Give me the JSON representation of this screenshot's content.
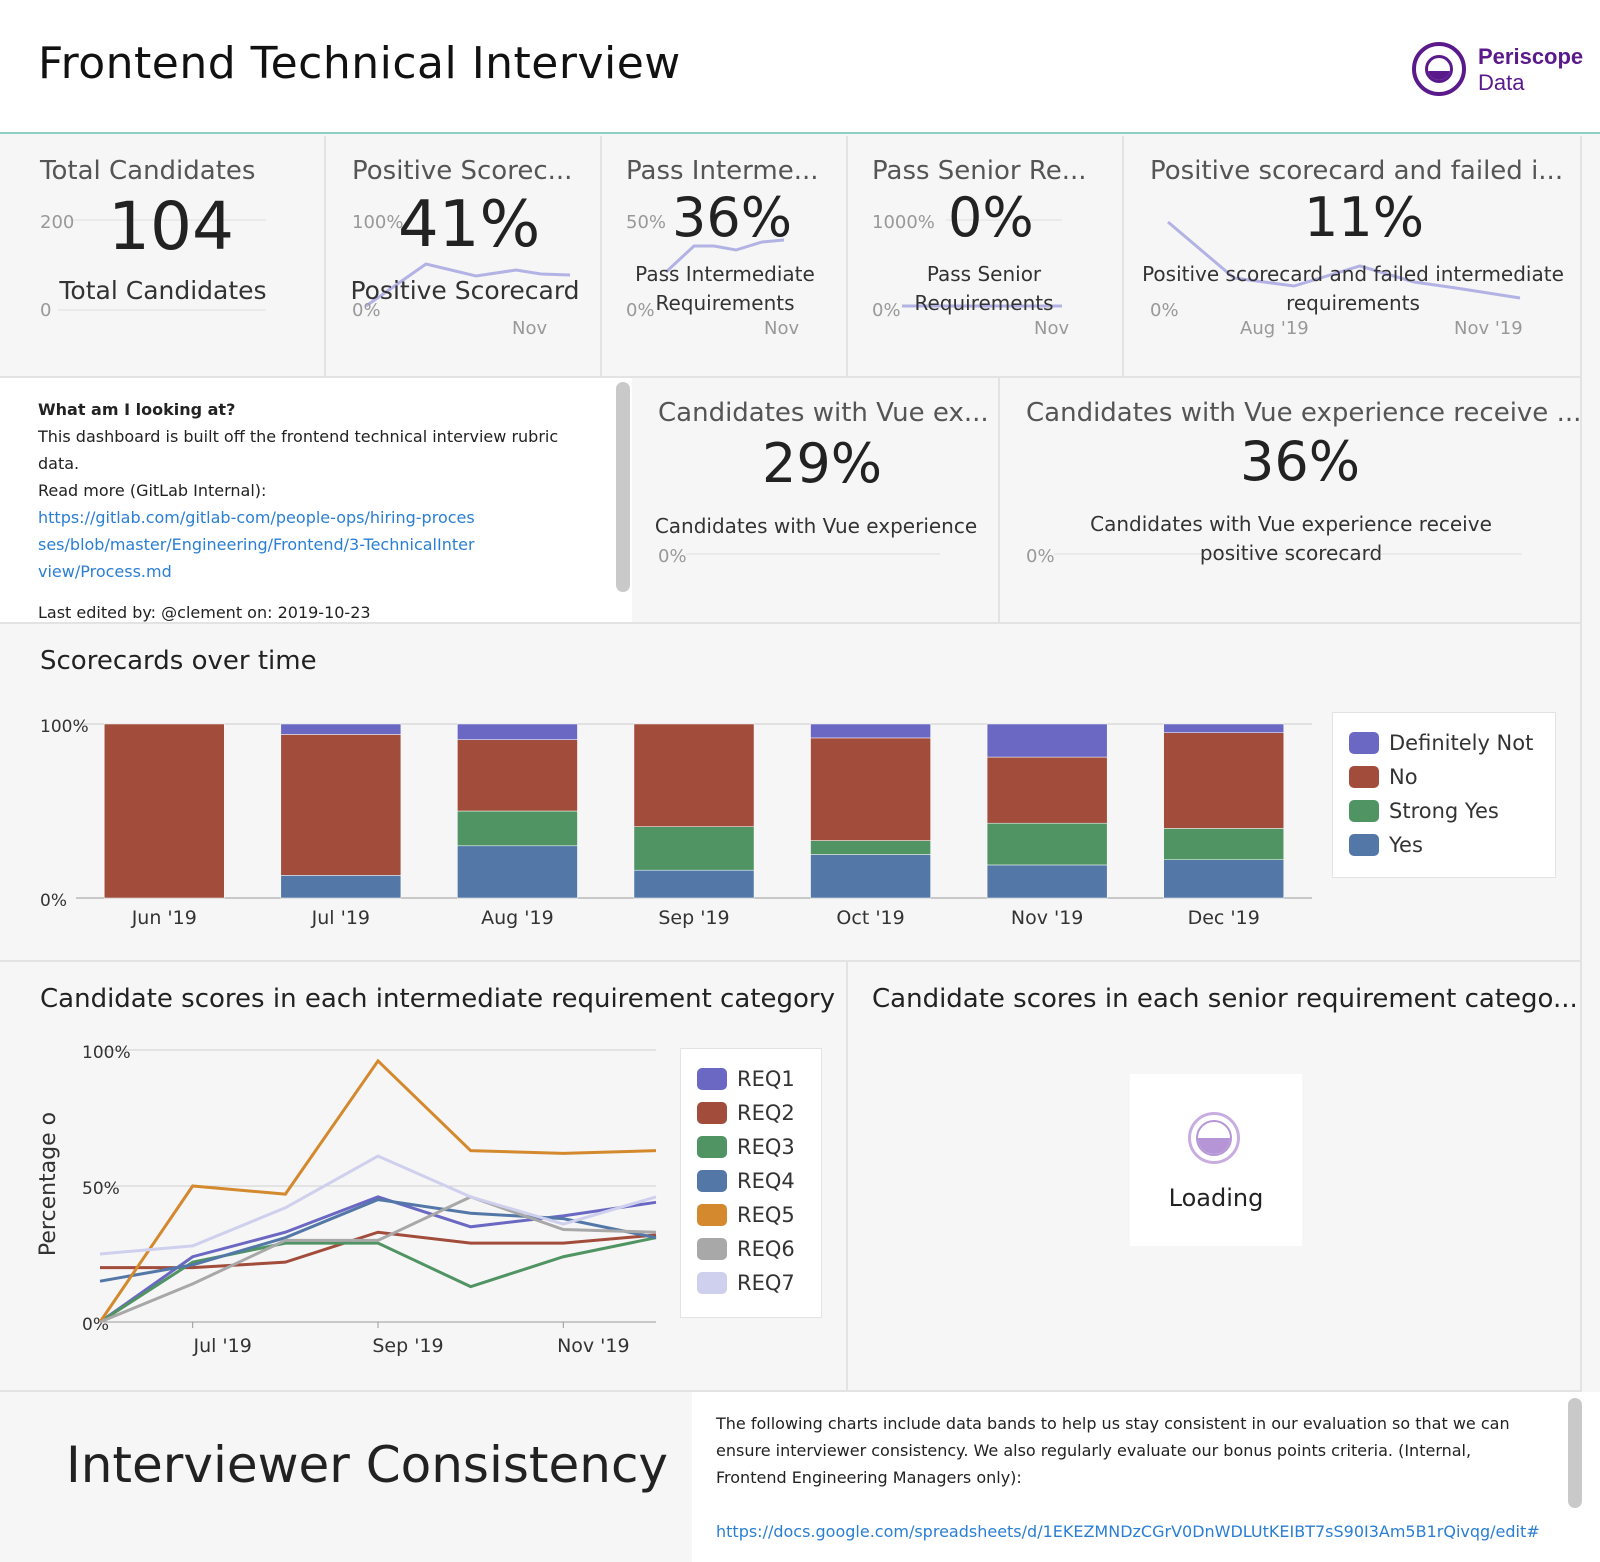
{
  "header": {
    "title": "Frontend Technical Interview",
    "logo_line1": "Periscope",
    "logo_line2": "Data"
  },
  "kpis": [
    {
      "title": "Total Candidates",
      "value": "104",
      "label": "Total Candidates",
      "ytop": "200",
      "ybottom": "0"
    },
    {
      "title": "Positive Scorec...",
      "value": "41%",
      "label": "Positive Scorecard",
      "ytop": "100%",
      "ybottom": "0%",
      "xtick": "Nov"
    },
    {
      "title": "Pass Interme...",
      "value": "36%",
      "label": "Pass Intermediate Requirements",
      "ytop": "50%",
      "ybottom": "0%",
      "xtick": "Nov"
    },
    {
      "title": "Pass Senior Re...",
      "value": "0%",
      "label": "Pass Senior Requirements",
      "ytop": "1000%",
      "ybottom": "0%",
      "xtick": "Nov"
    },
    {
      "title": "Positive scorecard and failed i...",
      "value": "11%",
      "label": "Positive scorecard and failed intermediate requirements",
      "ybottom": "0%",
      "xtick1": "Aug '19",
      "xtick2": "Nov '19"
    }
  ],
  "note": {
    "heading": "What am I looking at?",
    "line1": "This dashboard is built off the frontend technical interview rubric data.",
    "line2": "Read more (GitLab Internal):",
    "link": "https://gitlab.com/gitlab-com/people-ops/hiring-processes/blob/master/Engineering/Frontend/3-TechnicalInterview/Process.md",
    "edited": "Last edited by: @clement on: 2019-10-23"
  },
  "vue": [
    {
      "title": "Candidates with Vue ex...",
      "value": "29%",
      "label": "Candidates with Vue experience",
      "ybottom": "0%"
    },
    {
      "title": "Candidates with Vue experience receive ...",
      "value": "36%",
      "label": "Candidates with Vue experience receive positive scorecard",
      "ybottom": "0%"
    }
  ],
  "scorecards": {
    "title": "Scorecards over time",
    "colors": {
      "Definitely Not": "#6b68c4",
      "No": "#a24c3c",
      "Strong Yes": "#4f9462",
      "Yes": "#5378a8"
    },
    "legend": [
      "Definitely Not",
      "No",
      "Strong Yes",
      "Yes"
    ]
  },
  "intermediate": {
    "title": "Candidate scores in each intermediate requirement category",
    "ylabel": "Percentage o",
    "legend": [
      "REQ1",
      "REQ2",
      "REQ3",
      "REQ4",
      "REQ5",
      "REQ6",
      "REQ7"
    ],
    "colors": [
      "#6b68c4",
      "#a24c3c",
      "#4f9462",
      "#5378a8",
      "#d4892e",
      "#a8a8a8",
      "#cfcfee"
    ]
  },
  "senior": {
    "title": "Candidate scores in each senior requirement catego...",
    "loading": "Loading"
  },
  "consistency": {
    "title": "Interviewer Consistency",
    "text": "The following charts include data bands to help us stay consistent in our evaluation so that we can ensure interviewer consistency. We also regularly evaluate our bonus points criteria. (Internal, Frontend Engineering Managers only):",
    "link": "https://docs.google.com/spreadsheets/d/1EKEZMNDzCGrV0DnWDLUtKEIBT7sS90I3Am5B1rQivqg/edit#"
  },
  "chart_data": [
    {
      "type": "bar",
      "title": "Scorecards over time",
      "stacked": true,
      "categories": [
        "Jun '19",
        "Jul '19",
        "Aug '19",
        "Sep '19",
        "Oct '19",
        "Nov '19",
        "Dec '19"
      ],
      "ylim": [
        0,
        100
      ],
      "yticks": [
        "100%",
        "0%"
      ],
      "legend_position": "right",
      "series": [
        {
          "name": "Yes",
          "values": [
            0,
            13,
            30,
            16,
            25,
            19,
            22
          ]
        },
        {
          "name": "Strong Yes",
          "values": [
            0,
            0,
            20,
            25,
            8,
            24,
            18
          ]
        },
        {
          "name": "No",
          "values": [
            100,
            81,
            41,
            59,
            59,
            38,
            55
          ]
        },
        {
          "name": "Definitely Not",
          "values": [
            0,
            6,
            9,
            0,
            8,
            19,
            5
          ]
        }
      ]
    },
    {
      "type": "line",
      "title": "Candidate scores in each intermediate requirement category",
      "ylabel": "Percentage o",
      "x": [
        "Jun '19",
        "Jul '19",
        "Aug '19",
        "Sep '19",
        "Oct '19",
        "Nov '19",
        "Dec '19"
      ],
      "xticks": [
        "Jul '19",
        "Sep '19",
        "Nov '19"
      ],
      "yticks": [
        "100%",
        "50%",
        "0%"
      ],
      "ylim": [
        0,
        100
      ],
      "legend_position": "right",
      "series": [
        {
          "name": "REQ1",
          "values": [
            0,
            24,
            33,
            46,
            35,
            39,
            44
          ]
        },
        {
          "name": "REQ2",
          "values": [
            20,
            20,
            22,
            33,
            29,
            29,
            32
          ]
        },
        {
          "name": "REQ3",
          "values": [
            0,
            22,
            29,
            29,
            13,
            24,
            31
          ]
        },
        {
          "name": "REQ4",
          "values": [
            15,
            21,
            31,
            45,
            40,
            38,
            31
          ]
        },
        {
          "name": "REQ5",
          "values": [
            0,
            50,
            47,
            96,
            63,
            62,
            63
          ]
        },
        {
          "name": "REQ6",
          "values": [
            0,
            14,
            30,
            30,
            46,
            34,
            33
          ]
        },
        {
          "name": "REQ7",
          "values": [
            25,
            28,
            42,
            61,
            46,
            36,
            46
          ]
        }
      ]
    }
  ]
}
